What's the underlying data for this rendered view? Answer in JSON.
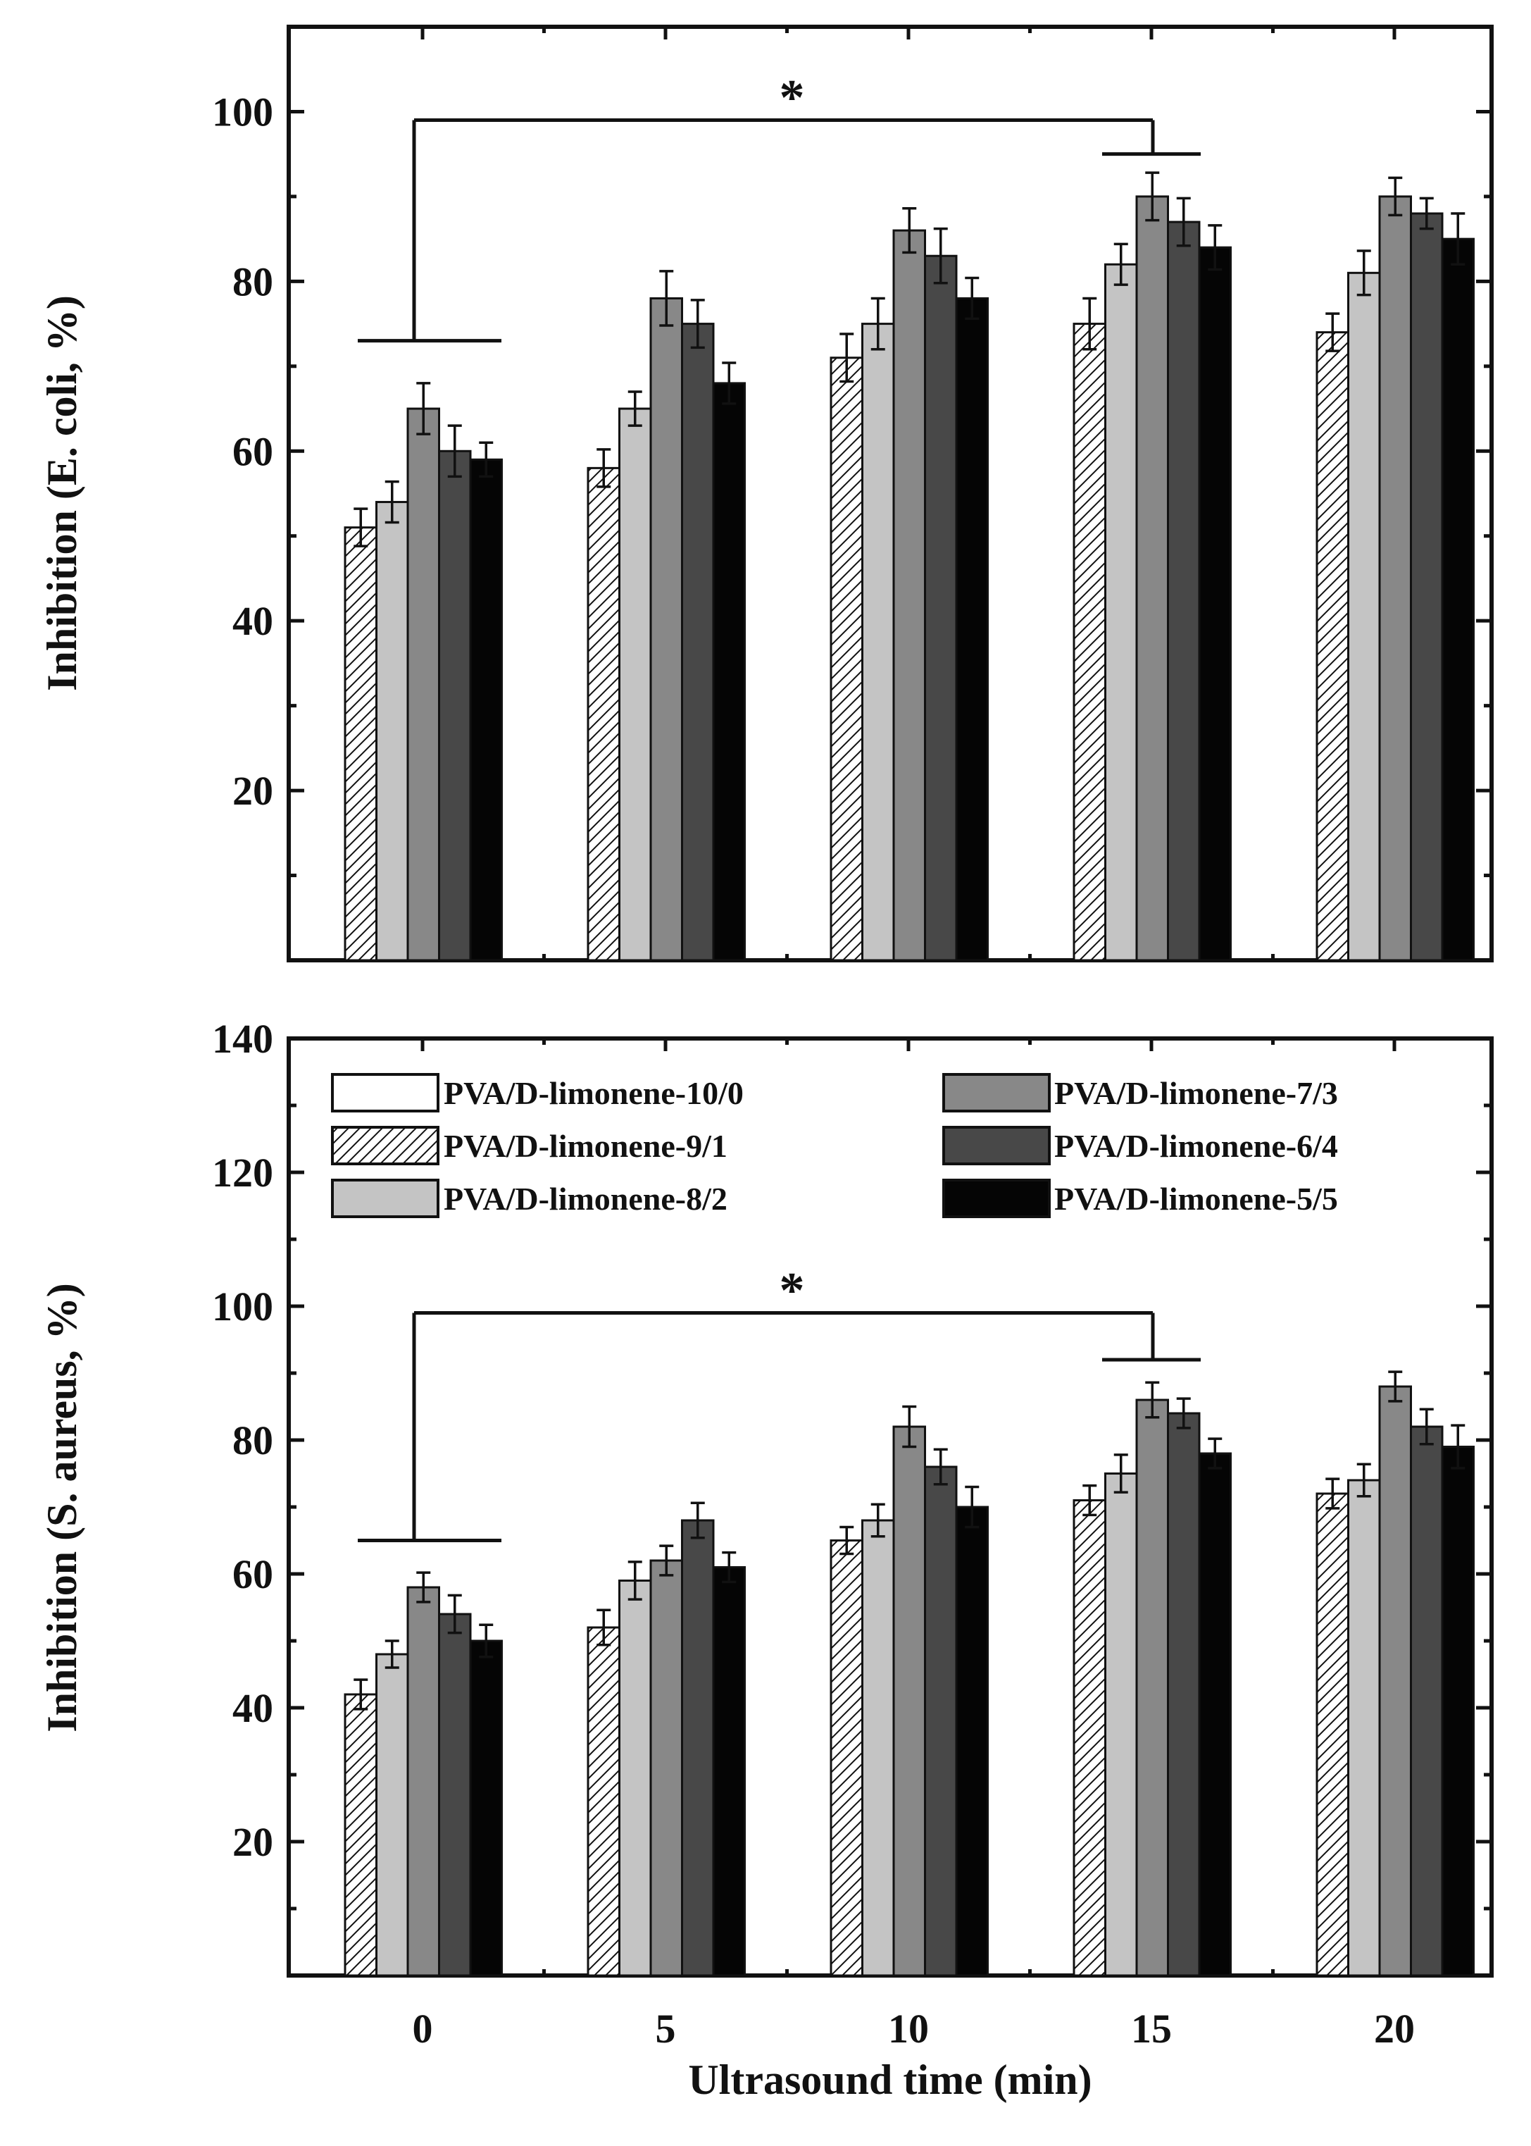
{
  "colors": {
    "ink": "#111111",
    "s0": "#ffffff",
    "s1": "#ffffff",
    "s2": "#c4c4c4",
    "s3": "#888888",
    "s4": "#484848",
    "s5": "#050505"
  },
  "chart_data": [
    {
      "type": "bar",
      "panel": "top",
      "ylabel": "Inhibition (E. coli, %)",
      "xlabel": "",
      "categories": [
        "0",
        "5",
        "10",
        "15",
        "20"
      ],
      "ylim": [
        0,
        110
      ],
      "yticks": [
        20,
        40,
        60,
        80,
        100
      ],
      "show_x_tick_labels": false,
      "series": [
        {
          "name": "PVA/D-limonene-10/0",
          "values": [
            0,
            0,
            0,
            0,
            0
          ],
          "errors": [
            0,
            0,
            0,
            0,
            0
          ]
        },
        {
          "name": "PVA/D-limonene-9/1",
          "values": [
            51,
            58,
            71,
            75,
            74
          ],
          "errors": [
            2.2,
            2.2,
            2.8,
            3,
            2.2
          ]
        },
        {
          "name": "PVA/D-limonene-8/2",
          "values": [
            54,
            65,
            75,
            82,
            81
          ],
          "errors": [
            2.4,
            2,
            3,
            2.4,
            2.6
          ]
        },
        {
          "name": "PVA/D-limonene-7/3",
          "values": [
            65,
            78,
            86,
            90,
            90
          ],
          "errors": [
            3,
            3.2,
            2.6,
            2.8,
            2.2
          ]
        },
        {
          "name": "PVA/D-limonene-6/4",
          "values": [
            60,
            75,
            83,
            87,
            88
          ],
          "errors": [
            3,
            2.8,
            3.2,
            2.8,
            1.8
          ]
        },
        {
          "name": "PVA/D-limonene-5/5",
          "values": [
            59,
            68,
            78,
            84,
            85
          ],
          "errors": [
            2,
            2.4,
            2.4,
            2.6,
            3
          ]
        }
      ],
      "annotations": [
        {
          "text": "*",
          "from_category": "0",
          "to_category": "15",
          "bracket_y": 99
        }
      ]
    },
    {
      "type": "bar",
      "panel": "bottom",
      "ylabel": "Inhibition (S. aureus, %)",
      "xlabel": "Ultrasound time (min)",
      "categories": [
        "0",
        "5",
        "10",
        "15",
        "20"
      ],
      "ylim": [
        0,
        140
      ],
      "yticks": [
        20,
        40,
        60,
        80,
        100,
        120,
        140
      ],
      "show_x_tick_labels": true,
      "legend": "top",
      "series": [
        {
          "name": "PVA/D-limonene-10/0",
          "values": [
            0,
            0,
            0,
            0,
            0
          ],
          "errors": [
            0,
            0,
            0,
            0,
            0
          ]
        },
        {
          "name": "PVA/D-limonene-9/1",
          "values": [
            42,
            52,
            65,
            71,
            72
          ],
          "errors": [
            2.2,
            2.6,
            2,
            2.2,
            2.2
          ]
        },
        {
          "name": "PVA/D-limonene-8/2",
          "values": [
            48,
            59,
            68,
            75,
            74
          ],
          "errors": [
            2,
            2.8,
            2.4,
            2.8,
            2.4
          ]
        },
        {
          "name": "PVA/D-limonene-7/3",
          "values": [
            58,
            62,
            82,
            86,
            88
          ],
          "errors": [
            2.2,
            2.2,
            3,
            2.6,
            2.2
          ]
        },
        {
          "name": "PVA/D-limonene-6/4",
          "values": [
            54,
            68,
            76,
            84,
            82
          ],
          "errors": [
            2.8,
            2.6,
            2.6,
            2.2,
            2.6
          ]
        },
        {
          "name": "PVA/D-limonene-5/5",
          "values": [
            50,
            61,
            70,
            78,
            79
          ],
          "errors": [
            2.4,
            2.2,
            3,
            2.2,
            3.2
          ]
        }
      ],
      "annotations": [
        {
          "text": "*",
          "from_category": "0",
          "to_category": "15",
          "bracket_y": 99
        }
      ]
    }
  ]
}
